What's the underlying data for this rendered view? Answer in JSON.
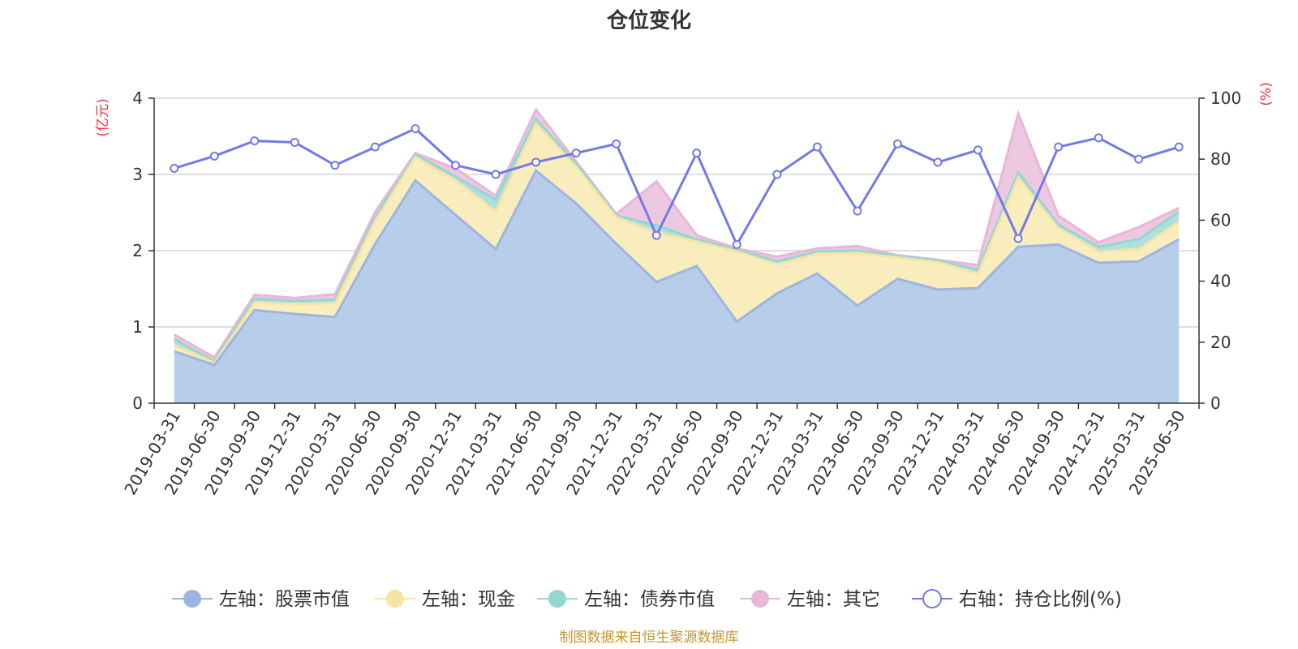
{
  "chart_data": {
    "type": "area",
    "title": "仓位变化",
    "left_axis": {
      "unit": "(亿元)",
      "ylim": [
        0,
        4
      ],
      "ticks": [
        "0",
        "1",
        "2",
        "3",
        "4"
      ]
    },
    "right_axis": {
      "unit": "(%)",
      "ylim": [
        0,
        100
      ],
      "ticks": [
        "0",
        "20",
        "40",
        "60",
        "80",
        "100"
      ]
    },
    "categories": [
      "2019-03-31",
      "2019-06-30",
      "2019-09-30",
      "2019-12-31",
      "2020-03-31",
      "2020-06-30",
      "2020-09-30",
      "2020-12-31",
      "2021-03-31",
      "2021-06-30",
      "2021-09-30",
      "2021-12-31",
      "2022-03-31",
      "2022-06-30",
      "2022-09-30",
      "2022-12-31",
      "2023-03-31",
      "2023-06-30",
      "2023-09-30",
      "2023-12-31",
      "2024-03-31",
      "2024-06-30",
      "2024-09-30",
      "2024-12-31",
      "2025-03-31",
      "2025-06-30"
    ],
    "series": [
      {
        "name": "左轴：股票市值",
        "axis": "left",
        "kind": "area",
        "color": "#9bb6e0",
        "fill": "#b8cdea",
        "values": [
          0.68,
          0.5,
          1.22,
          1.17,
          1.13,
          2.09,
          2.92,
          2.47,
          2.02,
          3.05,
          2.62,
          2.09,
          1.59,
          1.8,
          1.07,
          1.44,
          1.7,
          1.28,
          1.63,
          1.49,
          1.51,
          2.05,
          2.08,
          1.84,
          1.86,
          2.15
        ]
      },
      {
        "name": "左轴：现金",
        "axis": "left",
        "kind": "area",
        "color": "#f5e4a3",
        "fill": "#f9edbe",
        "values": [
          0.08,
          0.03,
          0.1,
          0.13,
          0.18,
          0.3,
          0.31,
          0.45,
          0.5,
          0.62,
          0.48,
          0.35,
          0.65,
          0.32,
          0.92,
          0.38,
          0.26,
          0.69,
          0.28,
          0.36,
          0.19,
          0.91,
          0.22,
          0.15,
          0.16,
          0.23
        ]
      },
      {
        "name": "左轴：债券市值",
        "axis": "left",
        "kind": "area",
        "color": "#94d6d2",
        "fill": "#afe0dd",
        "values": [
          0.08,
          0.02,
          0.05,
          0.04,
          0.05,
          0.05,
          0.03,
          0.05,
          0.15,
          0.06,
          0.04,
          0.02,
          0.09,
          0.03,
          0.02,
          0.04,
          0.03,
          0.03,
          0.02,
          0.02,
          0.05,
          0.07,
          0.04,
          0.06,
          0.13,
          0.13
        ]
      },
      {
        "name": "左轴：其它",
        "axis": "left",
        "kind": "area",
        "color": "#e8b6d7",
        "fill": "#ecc9e0",
        "values": [
          0.06,
          0.05,
          0.05,
          0.04,
          0.07,
          0.07,
          0.02,
          0.11,
          0.05,
          0.12,
          0.03,
          0.02,
          0.58,
          0.05,
          0.02,
          0.06,
          0.04,
          0.06,
          0.01,
          0.01,
          0.06,
          0.77,
          0.12,
          0.06,
          0.16,
          0.05
        ]
      },
      {
        "name": "右轴：持仓比例(%)",
        "axis": "right",
        "kind": "line",
        "color": "#7479e8",
        "values": [
          77,
          81,
          86,
          85.5,
          78,
          84,
          90,
          78,
          75,
          79,
          82,
          85,
          55,
          82,
          52,
          75,
          84,
          63,
          85,
          79,
          83,
          54,
          84,
          87,
          80,
          84
        ]
      }
    ]
  },
  "legend_placement": "bottom",
  "source_note": "制图数据来自恒生聚源数据库"
}
